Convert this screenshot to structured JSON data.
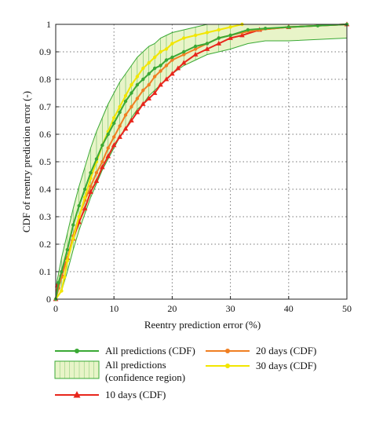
{
  "chart_data": {
    "type": "line",
    "title": "",
    "xlabel": "Reentry prediction error (%)",
    "ylabel": "CDF of reentry prediction error (-)",
    "xlim": [
      0,
      50
    ],
    "ylim": [
      0,
      1
    ],
    "x_ticks": [
      "0",
      "10",
      "20",
      "30",
      "40",
      "50"
    ],
    "y_ticks": [
      "0",
      "0.1",
      "0.2",
      "0.3",
      "0.4",
      "0.5",
      "0.6",
      "0.7",
      "0.8",
      "0.9",
      "1"
    ],
    "grid": true,
    "legend_position": "bottom",
    "series": [
      {
        "name": "All predictions (CDF)",
        "color": "#3aa935",
        "marker": "dot",
        "x": [
          0,
          0.5,
          1,
          2,
          3,
          4,
          5,
          6,
          7,
          8,
          9,
          10,
          11,
          12,
          13,
          14,
          15,
          16,
          17,
          18,
          19,
          20,
          22,
          24,
          26,
          28,
          30,
          33,
          36,
          40,
          45,
          50
        ],
        "y": [
          0,
          0.06,
          0.1,
          0.18,
          0.27,
          0.34,
          0.4,
          0.46,
          0.51,
          0.56,
          0.6,
          0.64,
          0.68,
          0.72,
          0.75,
          0.78,
          0.8,
          0.82,
          0.84,
          0.85,
          0.87,
          0.88,
          0.9,
          0.92,
          0.93,
          0.95,
          0.96,
          0.98,
          0.985,
          0.99,
          0.995,
          1.0
        ]
      },
      {
        "name": "10 days (CDF)",
        "color": "#e8261c",
        "marker": "triangle",
        "x": [
          0,
          0.3,
          1,
          2,
          3,
          4,
          5,
          6,
          7,
          8,
          9,
          10,
          11,
          12,
          13,
          14,
          15,
          16,
          17,
          18,
          19,
          20,
          21,
          22,
          24,
          26,
          28,
          30,
          32,
          35,
          40,
          50
        ],
        "y": [
          0,
          0.05,
          0.09,
          0.15,
          0.22,
          0.28,
          0.33,
          0.39,
          0.43,
          0.48,
          0.52,
          0.56,
          0.59,
          0.62,
          0.65,
          0.68,
          0.71,
          0.73,
          0.75,
          0.78,
          0.8,
          0.82,
          0.84,
          0.86,
          0.89,
          0.91,
          0.93,
          0.95,
          0.96,
          0.98,
          0.99,
          1.0
        ]
      },
      {
        "name": "20 days (CDF)",
        "color": "#f07f22",
        "marker": "dot",
        "x": [
          0,
          0.5,
          1,
          2,
          3,
          4,
          5,
          6,
          7,
          8,
          9,
          10,
          11,
          12,
          13,
          14,
          15,
          16,
          17,
          18,
          19,
          20,
          22,
          24,
          26,
          28,
          30,
          32,
          35,
          40,
          50
        ],
        "y": [
          0,
          0.04,
          0.08,
          0.15,
          0.23,
          0.3,
          0.36,
          0.41,
          0.46,
          0.5,
          0.55,
          0.59,
          0.63,
          0.67,
          0.7,
          0.73,
          0.76,
          0.78,
          0.81,
          0.83,
          0.85,
          0.87,
          0.89,
          0.91,
          0.93,
          0.95,
          0.96,
          0.97,
          0.98,
          0.99,
          1.0
        ]
      },
      {
        "name": "30 days (CDF)",
        "color": "#f2e600",
        "marker": "dot",
        "x": [
          0,
          1,
          1.5,
          2,
          3,
          4,
          5,
          6,
          7,
          8,
          9,
          10,
          11,
          12,
          13,
          14,
          15,
          16,
          17,
          18,
          19,
          20,
          22,
          24,
          26,
          28,
          30,
          32
        ],
        "y": [
          0,
          0.03,
          0.08,
          0.14,
          0.22,
          0.3,
          0.37,
          0.44,
          0.5,
          0.56,
          0.61,
          0.66,
          0.7,
          0.74,
          0.78,
          0.81,
          0.84,
          0.86,
          0.88,
          0.9,
          0.91,
          0.93,
          0.95,
          0.96,
          0.97,
          0.98,
          0.99,
          1.0
        ]
      }
    ],
    "confidence_region": {
      "name": "All predictions (confidence region)",
      "color": "#3aa935",
      "fill": "#e8f4c8",
      "x": [
        0,
        1,
        2,
        3,
        4,
        5,
        6,
        7,
        8,
        9,
        10,
        11,
        12,
        13,
        14,
        15,
        16,
        17,
        18,
        19,
        20,
        22,
        24,
        26,
        28,
        30,
        33,
        36,
        40,
        45,
        50
      ],
      "upper": [
        0.04,
        0.15,
        0.24,
        0.33,
        0.41,
        0.48,
        0.55,
        0.61,
        0.66,
        0.71,
        0.75,
        0.79,
        0.82,
        0.85,
        0.88,
        0.9,
        0.92,
        0.93,
        0.95,
        0.96,
        0.97,
        0.98,
        0.99,
        1.0,
        1.0,
        1.0,
        1.0,
        1.0,
        1.0,
        1.0,
        1.0
      ],
      "lower": [
        0,
        0.03,
        0.1,
        0.18,
        0.25,
        0.31,
        0.37,
        0.42,
        0.47,
        0.51,
        0.55,
        0.59,
        0.62,
        0.66,
        0.69,
        0.71,
        0.74,
        0.76,
        0.78,
        0.8,
        0.82,
        0.85,
        0.87,
        0.89,
        0.9,
        0.91,
        0.93,
        0.94,
        0.94,
        0.945,
        0.95
      ]
    },
    "legend": [
      {
        "label": "All predictions (CDF)",
        "kind": "line-dot",
        "color": "#3aa935"
      },
      {
        "label": "All predictions",
        "label2": "(confidence region)",
        "kind": "box",
        "color": "#3aa935",
        "fill": "#e8f4c8"
      },
      {
        "label": "10 days (CDF)",
        "kind": "line-triangle",
        "color": "#e8261c"
      },
      {
        "label": "20 days (CDF)",
        "kind": "line-dot",
        "color": "#f07f22"
      },
      {
        "label": "30 days (CDF)",
        "kind": "line-dot",
        "color": "#f2e600"
      }
    ]
  }
}
